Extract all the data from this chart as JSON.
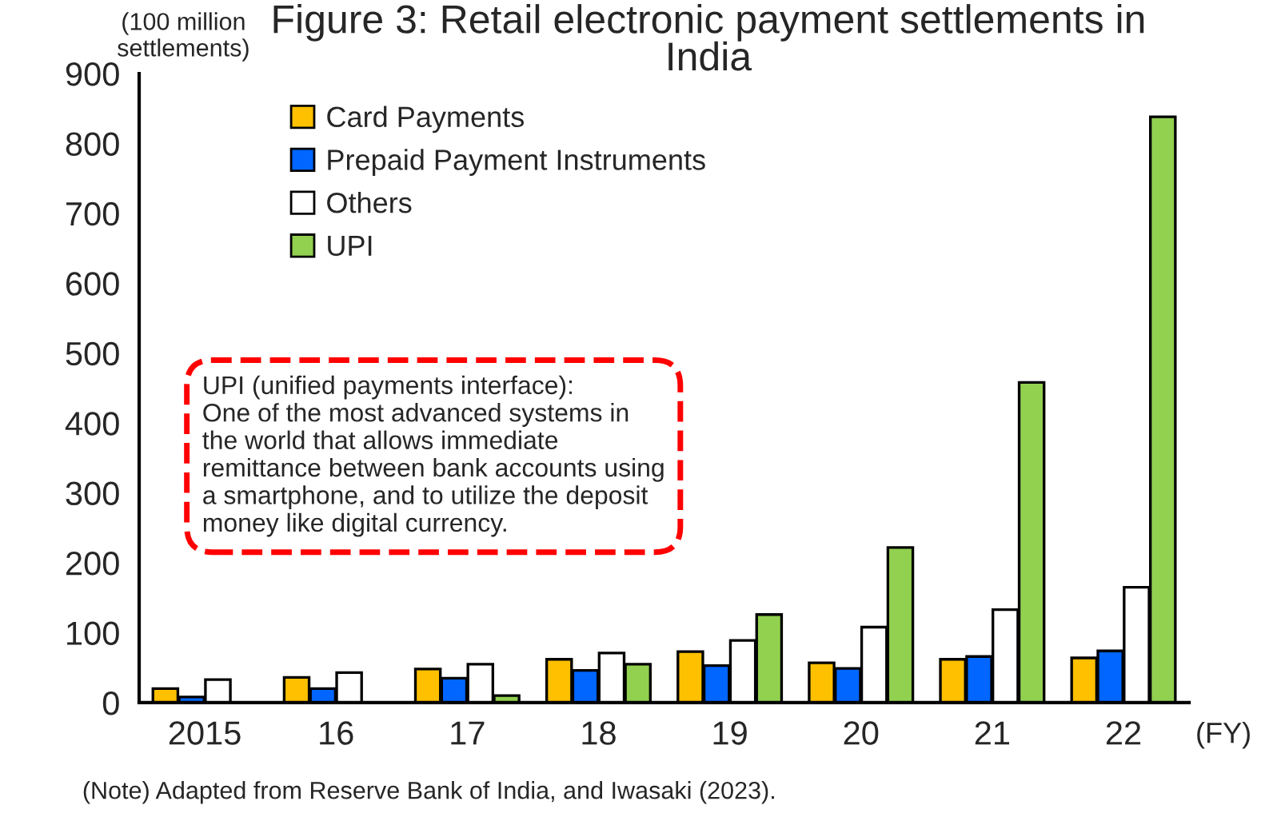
{
  "chart_data": {
    "type": "bar",
    "title": "Figure 3: Retail electronic payment settlements in India",
    "ylabel": "(100 million\nsettlements)",
    "xlabel": "(FY)",
    "categories": [
      "2015",
      "16",
      "17",
      "18",
      "19",
      "20",
      "21",
      "22"
    ],
    "series": [
      {
        "name": "Card Payments",
        "color": "#ffc000",
        "values": [
          20,
          36,
          48,
          62,
          73,
          57,
          62,
          64
        ]
      },
      {
        "name": "Prepaid Payment Instruments",
        "color": "#0066ff",
        "values": [
          8,
          20,
          35,
          46,
          53,
          49,
          66,
          74
        ]
      },
      {
        "name": "Others",
        "color": "#ffffff",
        "values": [
          33,
          43,
          55,
          71,
          89,
          108,
          133,
          165
        ]
      },
      {
        "name": "UPI",
        "color": "#92d050",
        "values": [
          null,
          null,
          10,
          55,
          126,
          222,
          458,
          838
        ]
      }
    ],
    "ylim": [
      0,
      900
    ],
    "yticks": [
      0,
      100,
      200,
      300,
      400,
      500,
      600,
      700,
      800,
      900
    ],
    "grid": false,
    "legend": "top left",
    "annotations": [
      "UPI (unified payments interface):\nOne of the most advanced systems in\nthe world that allows immediate\nremittance between bank accounts using\na smartphone, and to utilize the deposit\nmoney like digital currency.",
      "(Note) Adapted from Reserve Bank of India, and Iwasaki (2023)."
    ]
  }
}
